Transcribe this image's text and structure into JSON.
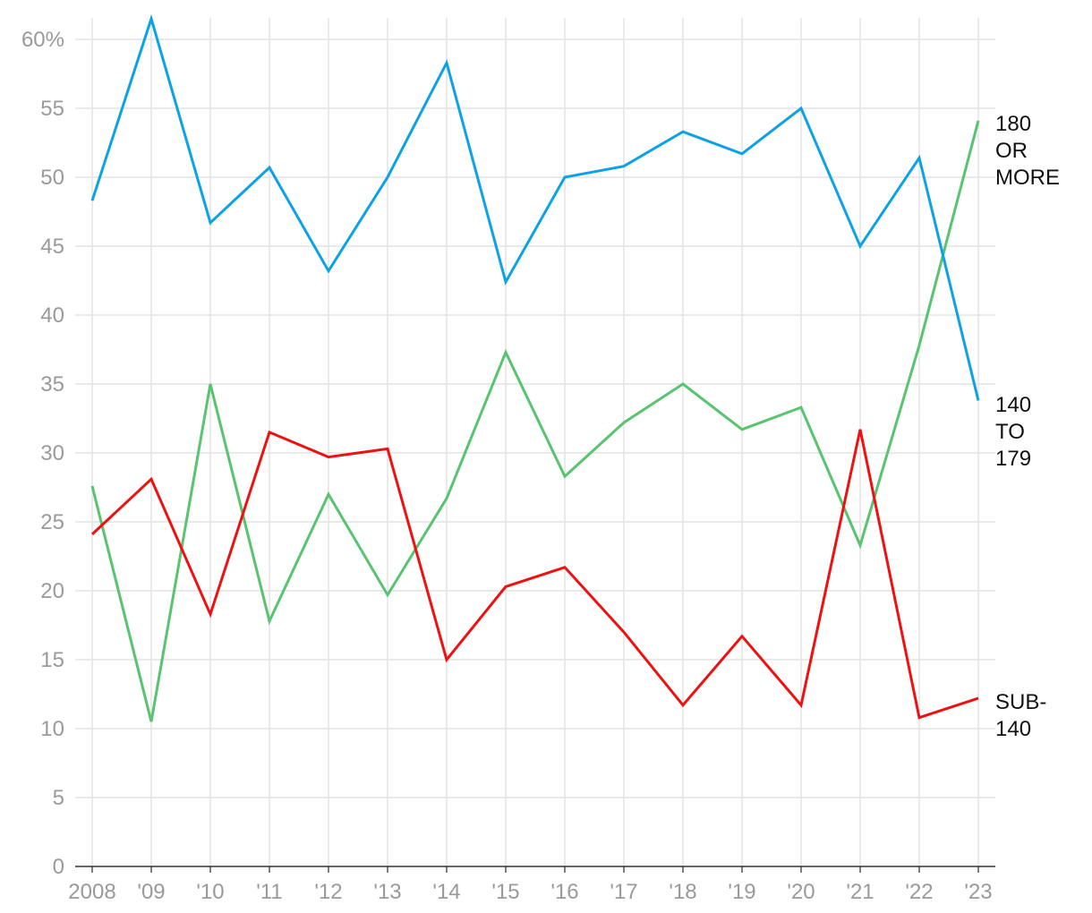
{
  "chart_data": {
    "type": "line",
    "title": "",
    "xlabel": "",
    "ylabel": "",
    "x": [
      "2008",
      "'09",
      "'10",
      "'11",
      "'12",
      "'13",
      "'14",
      "'15",
      "'16",
      "'17",
      "'18",
      "'19",
      "'20",
      "'21",
      "'22",
      "'23"
    ],
    "ylim": [
      0,
      62
    ],
    "yticks": [
      0,
      5,
      10,
      15,
      20,
      25,
      30,
      35,
      40,
      45,
      50,
      55,
      60
    ],
    "yticklabels": [
      "0",
      "5",
      "10",
      "15",
      "20",
      "25",
      "30",
      "35",
      "40",
      "45",
      "50",
      "55",
      "60%"
    ],
    "grid": true,
    "series": [
      {
        "name": "180 OR MORE",
        "label_lines": [
          "180",
          "OR",
          "MORE"
        ],
        "color": "#0da2e6",
        "values": [
          48.3,
          61.5,
          46.7,
          50.7,
          43.2,
          50.0,
          58.3,
          42.4,
          50.0,
          50.8,
          53.3,
          51.7,
          55.0,
          45.0,
          51.4,
          33.8
        ]
      },
      {
        "name": "140 TO 179",
        "label_lines": [
          "140",
          "TO",
          "179"
        ],
        "color": "#58c46f",
        "values": [
          27.6,
          10.5,
          35.0,
          17.8,
          27.0,
          19.7,
          26.7,
          37.3,
          28.3,
          32.2,
          35.0,
          31.7,
          33.3,
          23.3,
          37.8,
          54.1
        ]
      },
      {
        "name": "SUB-140",
        "label_lines": [
          "SUB-",
          "140"
        ],
        "color": "#ee1111",
        "values": [
          24.1,
          28.1,
          18.3,
          31.5,
          29.7,
          30.3,
          15.0,
          20.3,
          21.7,
          17.0,
          11.7,
          16.7,
          11.7,
          31.7,
          10.8,
          12.2
        ]
      }
    ]
  }
}
